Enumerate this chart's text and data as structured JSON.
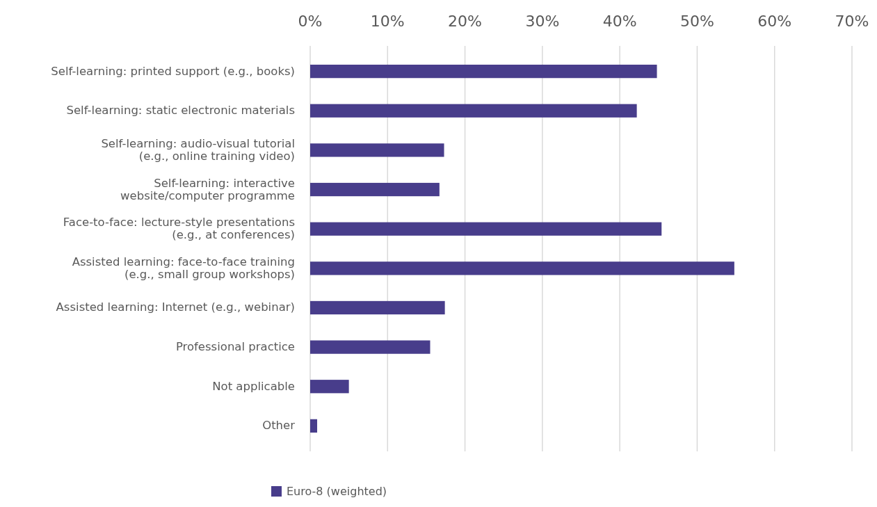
{
  "chart_data": {
    "type": "bar",
    "orientation": "horizontal",
    "categories": [
      "Self-learning: printed support (e.g., books)",
      "Self-learning: static electronic materials",
      "Self-learning: audio-visual tutorial (e.g., online training video)",
      "Self-learning: interactive website/computer programme",
      "Face-to-face: lecture-style presentations (e.g., at conferences)",
      "Assisted learning: face-to-face training (e.g., small group workshops)",
      "Assisted learning: Internet (e.g., webinar)",
      "Professional practice",
      "Not applicable",
      "Other"
    ],
    "series": [
      {
        "name": "Euro-8 (weighted)",
        "color": "#483d8b",
        "values": [
          44.8,
          42.2,
          17.3,
          16.7,
          45.4,
          54.8,
          17.4,
          15.5,
          5.0,
          0.9
        ]
      }
    ],
    "xlim": [
      0,
      70
    ],
    "xticks": [
      {
        "value": 0,
        "label": "0%"
      },
      {
        "value": 10,
        "label": "10%"
      },
      {
        "value": 20,
        "label": "20%"
      },
      {
        "value": 30,
        "label": "30%"
      },
      {
        "value": 40,
        "label": "40%"
      },
      {
        "value": 50,
        "label": "50%"
      },
      {
        "value": 60,
        "label": "60%"
      },
      {
        "value": 70,
        "label": "70%"
      }
    ],
    "grid": "x",
    "legend": "bottom"
  }
}
